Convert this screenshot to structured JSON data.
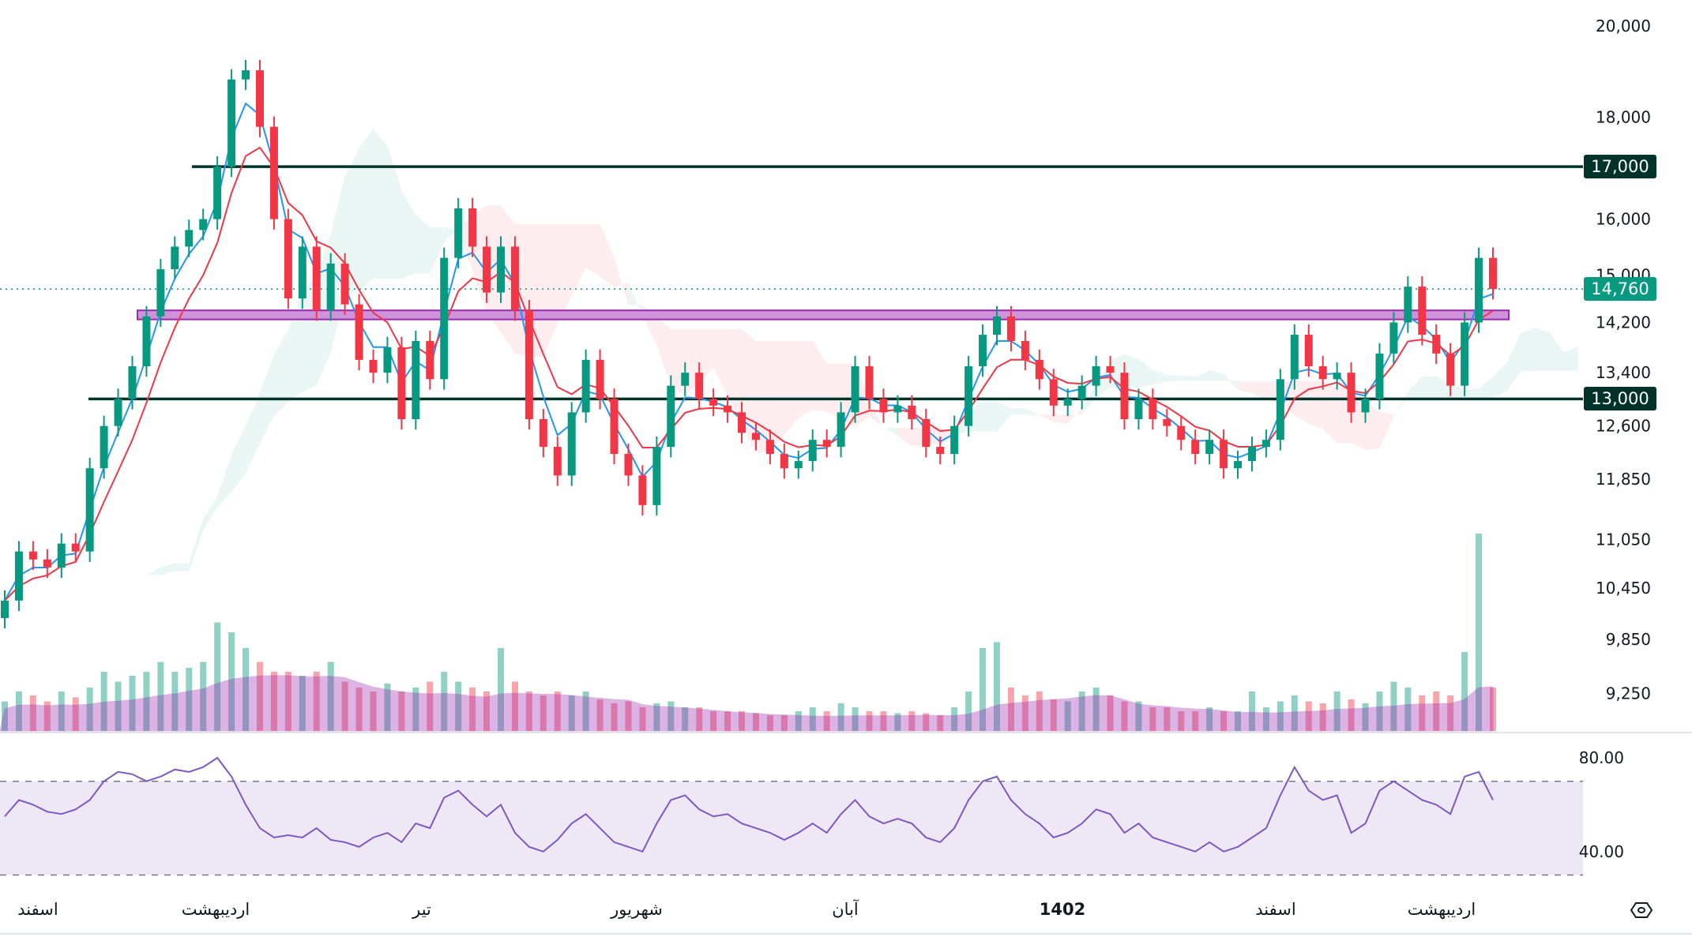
{
  "chart_data": {
    "type": "candlestick",
    "title": "",
    "scale": "log",
    "ylim": [
      9250,
      20000
    ],
    "y_ticks": [
      "20,000",
      "18,000",
      "16,000",
      "15,000",
      "14,200",
      "13,400",
      "12,600",
      "11,850",
      "11,050",
      "10,450",
      "9,850",
      "9,250"
    ],
    "y_tick_values": [
      20000,
      18000,
      16000,
      15000,
      14200,
      13400,
      12600,
      11850,
      11050,
      10450,
      9850,
      9250
    ],
    "x_ticks": [
      {
        "label": "اسفند",
        "bold": false
      },
      {
        "label": "اردیبهشت",
        "bold": false
      },
      {
        "label": "تیر",
        "bold": false
      },
      {
        "label": "شهریور",
        "bold": false
      },
      {
        "label": "آبان",
        "bold": false
      },
      {
        "label": "1402",
        "bold": true
      },
      {
        "label": "اسفند",
        "bold": false
      },
      {
        "label": "اردیبهشت",
        "bold": false
      }
    ],
    "closes": [
      10300,
      10900,
      10800,
      10700,
      11000,
      10900,
      12000,
      12600,
      13000,
      13500,
      14300,
      15100,
      15500,
      15800,
      16000,
      17000,
      18800,
      19000,
      17800,
      16000,
      14600,
      15500,
      14400,
      15200,
      14500,
      13600,
      13400,
      13800,
      12700,
      13900,
      13300,
      15300,
      16200,
      15500,
      14700,
      15500,
      14400,
      12700,
      12300,
      11900,
      12800,
      13600,
      13000,
      12200,
      11900,
      11500,
      12300,
      13200,
      13400,
      13000,
      12900,
      12800,
      12500,
      12400,
      12200,
      12000,
      12100,
      12400,
      12300,
      12800,
      13500,
      13000,
      12800,
      12900,
      12700,
      12300,
      12200,
      12600,
      13500,
      14000,
      14300,
      13900,
      13600,
      13300,
      12900,
      13000,
      13200,
      13500,
      13400,
      12700,
      13000,
      12700,
      12600,
      12400,
      12200,
      12400,
      12000,
      12100,
      12300,
      12400,
      13300,
      14000,
      13500,
      13300,
      13400,
      12800,
      13000,
      13700,
      14200,
      14800,
      14000,
      13700,
      13200,
      14200,
      15300,
      14760
    ],
    "volume_relative": [
      0.15,
      0.2,
      0.18,
      0.15,
      0.2,
      0.17,
      0.22,
      0.3,
      0.25,
      0.28,
      0.3,
      0.35,
      0.3,
      0.32,
      0.35,
      0.55,
      0.5,
      0.42,
      0.35,
      0.3,
      0.3,
      0.28,
      0.3,
      0.35,
      0.25,
      0.22,
      0.2,
      0.24,
      0.2,
      0.22,
      0.25,
      0.3,
      0.25,
      0.22,
      0.2,
      0.42,
      0.25,
      0.2,
      0.18,
      0.2,
      0.18,
      0.2,
      0.16,
      0.14,
      0.15,
      0.12,
      0.14,
      0.15,
      0.12,
      0.12,
      0.1,
      0.1,
      0.1,
      0.09,
      0.08,
      0.08,
      0.1,
      0.12,
      0.1,
      0.14,
      0.12,
      0.1,
      0.1,
      0.09,
      0.1,
      0.09,
      0.08,
      0.12,
      0.2,
      0.42,
      0.45,
      0.22,
      0.18,
      0.2,
      0.16,
      0.15,
      0.2,
      0.22,
      0.18,
      0.15,
      0.15,
      0.12,
      0.12,
      0.1,
      0.1,
      0.12,
      0.1,
      0.1,
      0.2,
      0.12,
      0.15,
      0.18,
      0.15,
      0.14,
      0.2,
      0.16,
      0.14,
      0.2,
      0.25,
      0.22,
      0.18,
      0.2,
      0.18,
      0.4,
      1.0,
      0.22
    ],
    "rsi": [
      55,
      62,
      60,
      57,
      56,
      58,
      62,
      70,
      74,
      73,
      70,
      72,
      75,
      74,
      76,
      80,
      72,
      60,
      50,
      46,
      47,
      46,
      50,
      45,
      44,
      42,
      46,
      48,
      44,
      52,
      50,
      63,
      66,
      60,
      55,
      60,
      48,
      42,
      40,
      45,
      52,
      56,
      50,
      44,
      42,
      40,
      52,
      62,
      64,
      58,
      55,
      56,
      52,
      50,
      48,
      45,
      48,
      52,
      48,
      56,
      62,
      55,
      52,
      54,
      52,
      46,
      44,
      50,
      62,
      70,
      72,
      62,
      56,
      52,
      46,
      48,
      52,
      58,
      56,
      48,
      52,
      46,
      44,
      42,
      40,
      44,
      40,
      42,
      46,
      50,
      64,
      76,
      66,
      62,
      64,
      48,
      52,
      66,
      70,
      66,
      62,
      60,
      56,
      72,
      74,
      62
    ],
    "rsi_ticks": [
      "80.00",
      "40.00"
    ],
    "rsi_bands": [
      70,
      30
    ],
    "horizontal_levels": [
      {
        "value": 17000,
        "label": "17,000",
        "color": "#00332a"
      },
      {
        "value": 13000,
        "label": "13,000",
        "color": "#00332a"
      }
    ],
    "last_price": {
      "value": 14760,
      "label": "14,760",
      "color": "#089981"
    },
    "zone": {
      "from": 14250,
      "to": 14400,
      "color": "#ce93d8",
      "border": "#9c27b0"
    },
    "colors": {
      "up": "#089981",
      "down": "#f23645",
      "ema_fast": "#2196f3",
      "ema_slow": "#f23645",
      "rsi": "#7e57c2",
      "rsi_band": "#ede7f6",
      "volume_ma": "#9c27b0"
    }
  },
  "toolbar": {
    "settings_icon": "settings-hexagon-icon"
  }
}
